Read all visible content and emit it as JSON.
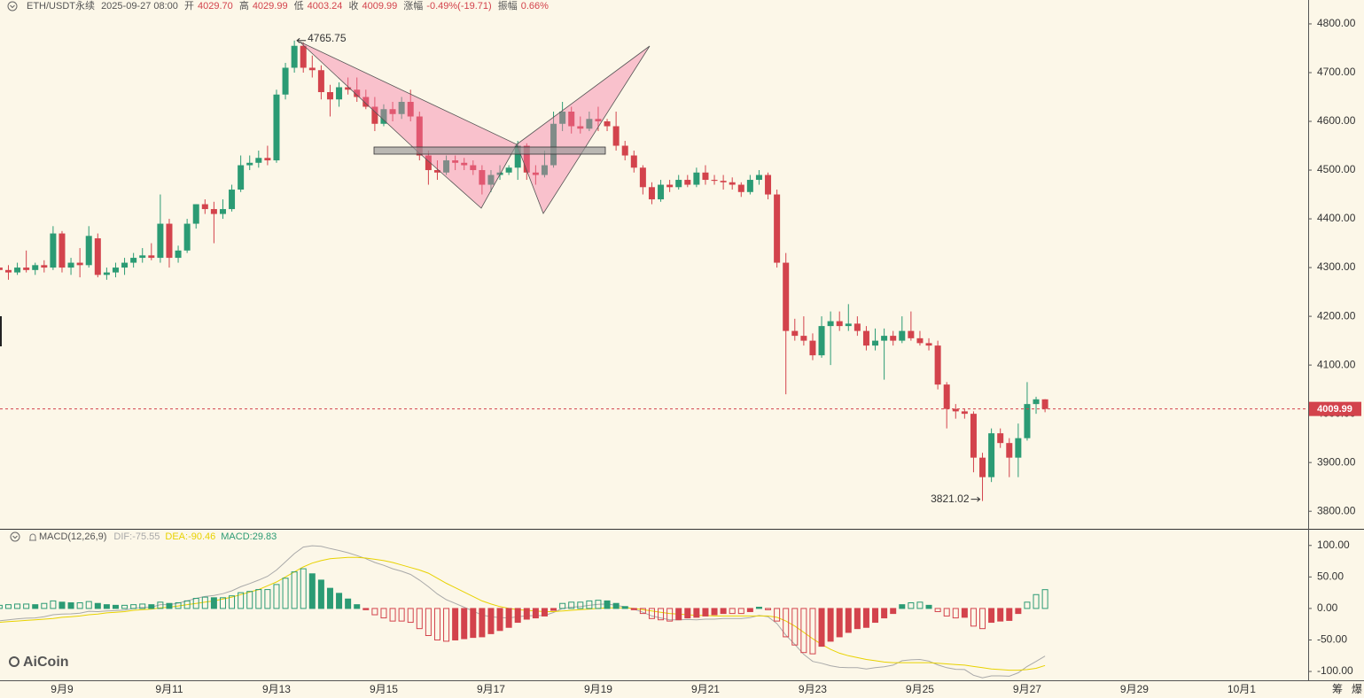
{
  "header": {
    "symbol": "ETH/USDT永续",
    "time": "2025-09-27 08:00",
    "open_label": "开",
    "open": "4029.70",
    "high_label": "高",
    "high": "4029.99",
    "low_label": "低",
    "low": "4003.24",
    "close_label": "收",
    "close": "4009.99",
    "change_label": "涨幅",
    "change": "-0.49%(-19.71)",
    "amplitude_label": "振幅",
    "amplitude": "0.66%"
  },
  "watermark": "AiCoin",
  "side_tabs": [
    "筹",
    "爆"
  ],
  "chart_data": [
    {
      "type": "candlestick",
      "categories": [
        null,
        null,
        null,
        null,
        null,
        null,
        null,
        "9月9",
        null,
        null,
        null,
        null,
        null,
        null,
        null,
        null,
        null,
        null,
        null,
        "9月11",
        null,
        null,
        null,
        null,
        null,
        null,
        null,
        null,
        null,
        null,
        null,
        "9月13",
        null,
        null,
        null,
        null,
        null,
        null,
        null,
        null,
        null,
        null,
        null,
        "9月15",
        null,
        null,
        null,
        null,
        null,
        null,
        null,
        null,
        null,
        null,
        null,
        "9月17",
        null,
        null,
        null,
        null,
        null,
        null,
        null,
        null,
        null,
        null,
        null,
        "9月19",
        null,
        null,
        null,
        null,
        null,
        null,
        null,
        null,
        null,
        null,
        null,
        "9月21",
        null,
        null,
        null,
        null,
        null,
        null,
        null,
        null,
        null,
        null,
        null,
        "9月23",
        null,
        null,
        null,
        null,
        null,
        null,
        null,
        null,
        null,
        null,
        null,
        "9月25",
        null,
        null,
        null,
        null,
        null,
        null,
        null,
        null,
        null,
        null,
        null,
        "9月27",
        null,
        null,
        null,
        null,
        null,
        null,
        null,
        null,
        null,
        null,
        null,
        "9月29",
        null,
        null,
        null,
        null,
        null,
        null,
        null,
        null,
        null,
        null,
        null,
        "10月1"
      ],
      "open": [
        4300,
        4295,
        4290,
        4300,
        4295,
        4305,
        4300,
        4370,
        4300,
        4310,
        4305,
        4360,
        4285,
        4290,
        4300,
        4310,
        4320,
        4325,
        4320,
        4390,
        4320,
        4335,
        4390,
        4430,
        4420,
        4410,
        4420,
        4460,
        4510,
        4515,
        4525,
        4520,
        4655,
        4710,
        4755,
        4710,
        4705,
        4660,
        4645,
        4670,
        4665,
        4650,
        4630,
        4595,
        4625,
        4615,
        4640,
        4610,
        4530,
        4500,
        4495,
        4520,
        4515,
        4510,
        4500,
        4470,
        4490,
        4495,
        4505,
        4550,
        4495,
        4490,
        4510,
        4595,
        4620,
        4590,
        4585,
        4605,
        4600,
        4590,
        4550,
        4530,
        4505,
        4465,
        4440,
        4470,
        4465,
        4480,
        4470,
        4495,
        4480,
        4478,
        4475,
        4470,
        4455,
        4480,
        4490,
        4450,
        4310,
        4170,
        4160,
        4150,
        4120,
        4180,
        4190,
        4180,
        4185,
        4170,
        4140,
        4150,
        4160,
        4150,
        4170,
        4155,
        4145,
        4140,
        4060,
        4010,
        4005,
        4000,
        3910,
        3870,
        3960,
        3940,
        3910,
        3950,
        4020,
        4029.7,
        null,
        null,
        null,
        null,
        null,
        null,
        null,
        null,
        null,
        null,
        null,
        null,
        null,
        null,
        null,
        null,
        null,
        null,
        null,
        null,
        null,
        null
      ],
      "high": [
        4310,
        4305,
        4310,
        4335,
        4310,
        4315,
        4385,
        4375,
        4320,
        4340,
        4385,
        4370,
        4300,
        4310,
        4320,
        4330,
        4340,
        4350,
        4450,
        4400,
        4345,
        4400,
        4430,
        4440,
        4435,
        4440,
        4470,
        4530,
        4530,
        4540,
        4550,
        4665,
        4720,
        4765.75,
        4762,
        4735,
        4715,
        4675,
        4680,
        4690,
        4690,
        4665,
        4650,
        4635,
        4640,
        4650,
        4665,
        4620,
        4540,
        4520,
        4530,
        4530,
        4525,
        4520,
        4510,
        4500,
        4510,
        4510,
        4560,
        4555,
        4510,
        4540,
        4620,
        4640,
        4630,
        4610,
        4620,
        4630,
        4605,
        4620,
        4560,
        4540,
        4510,
        4475,
        4480,
        4480,
        4490,
        4490,
        4505,
        4510,
        4490,
        4490,
        4485,
        4475,
        4490,
        4500,
        4495,
        4460,
        4330,
        4195,
        4200,
        4165,
        4200,
        4210,
        4210,
        4225,
        4200,
        4180,
        4175,
        4175,
        4170,
        4200,
        4210,
        4170,
        4155,
        4150,
        4065,
        4020,
        4010,
        4005,
        3920,
        3970,
        3970,
        3950,
        3980,
        4065,
        4035,
        4029.99,
        null,
        null,
        null,
        null,
        null,
        null,
        null,
        null,
        null,
        null,
        null,
        null,
        null,
        null,
        null,
        null,
        null,
        null,
        null,
        null,
        null,
        null
      ],
      "low": [
        4280,
        4275,
        4285,
        4290,
        4285,
        4290,
        4295,
        4290,
        4285,
        4280,
        4300,
        4280,
        4275,
        4280,
        4285,
        4300,
        4310,
        4315,
        4310,
        4300,
        4310,
        4330,
        4380,
        4410,
        4350,
        4400,
        4415,
        4455,
        4500,
        4505,
        4510,
        4515,
        4645,
        4700,
        4700,
        4690,
        4645,
        4610,
        4630,
        4655,
        4640,
        4625,
        4580,
        4590,
        4600,
        4605,
        4600,
        4520,
        4470,
        4480,
        4490,
        4500,
        4500,
        4490,
        4450,
        4455,
        4480,
        4490,
        4480,
        4480,
        4470,
        4485,
        4505,
        4580,
        4575,
        4575,
        4580,
        4580,
        4580,
        4540,
        4520,
        4495,
        4450,
        4430,
        4435,
        4455,
        4460,
        4465,
        4465,
        4470,
        4470,
        4460,
        4460,
        4445,
        4450,
        4470,
        4440,
        4300,
        4040,
        4150,
        4140,
        4110,
        4115,
        4100,
        4170,
        4170,
        4160,
        4130,
        4130,
        4070,
        4140,
        4145,
        4150,
        4140,
        4130,
        4050,
        3970,
        3990,
        3990,
        3880,
        3821.02,
        3860,
        3930,
        3870,
        3870,
        3945,
        4000,
        4003.24,
        null,
        null,
        null,
        null,
        null,
        null,
        null,
        null,
        null,
        null,
        null,
        null,
        null,
        null,
        null,
        null,
        null,
        null,
        null,
        null,
        null,
        null
      ],
      "close": [
        4295,
        4290,
        4300,
        4295,
        4305,
        4300,
        4370,
        4300,
        4310,
        4305,
        4365,
        4285,
        4290,
        4300,
        4310,
        4320,
        4325,
        4320,
        4390,
        4320,
        4335,
        4390,
        4430,
        4420,
        4410,
        4420,
        4460,
        4510,
        4515,
        4525,
        4520,
        4655,
        4710,
        4755,
        4710,
        4705,
        4660,
        4645,
        4670,
        4665,
        4650,
        4630,
        4595,
        4625,
        4615,
        4640,
        4610,
        4530,
        4500,
        4495,
        4520,
        4515,
        4510,
        4500,
        4470,
        4490,
        4495,
        4505,
        4550,
        4495,
        4490,
        4510,
        4595,
        4620,
        4590,
        4585,
        4605,
        4600,
        4590,
        4550,
        4530,
        4505,
        4465,
        4440,
        4470,
        4465,
        4480,
        4470,
        4495,
        4480,
        4478,
        4475,
        4470,
        4455,
        4480,
        4490,
        4450,
        4310,
        4170,
        4160,
        4150,
        4120,
        4180,
        4190,
        4180,
        4185,
        4170,
        4140,
        4150,
        4160,
        4150,
        4170,
        4155,
        4145,
        4140,
        4060,
        4010,
        4005,
        4000,
        3910,
        3870,
        3960,
        3940,
        3910,
        3950,
        4020,
        4029.7,
        4009.99,
        null,
        null,
        null,
        null,
        null,
        null,
        null,
        null,
        null,
        null,
        null,
        null,
        null,
        null,
        null,
        null,
        null,
        null,
        null,
        null,
        null,
        null
      ],
      "up_color": "#2b9b74",
      "down_color": "#d3434c",
      "ylim": [
        3764,
        4849
      ],
      "yticks": [
        {
          "value": 3800,
          "label": "3800.00"
        },
        {
          "value": 3900,
          "label": "3900.00"
        },
        {
          "value": 4000,
          "label": "4000.00"
        },
        {
          "value": 4100,
          "label": "4100.00"
        },
        {
          "value": 4200,
          "label": "4200.00"
        },
        {
          "value": 4300,
          "label": "4300.00"
        },
        {
          "value": 4400,
          "label": "4400.00"
        },
        {
          "value": 4500,
          "label": "4500.00"
        },
        {
          "value": 4600,
          "label": "4600.00"
        },
        {
          "value": 4700,
          "label": "4700.00"
        },
        {
          "value": 4800,
          "label": "4800.00"
        }
      ],
      "price_line": true,
      "extremes": true
    },
    {
      "type": "bar",
      "title": "MACD(12,26,9)",
      "series": [
        {
          "name": "DIF:-75.55",
          "type": "line",
          "color": "#a9a9a9",
          "values": [
            -19.5,
            -18,
            -16.5,
            -15.5,
            -15,
            -13,
            -10,
            -9,
            -8.5,
            -7.5,
            -4.5,
            -5,
            -4,
            -3.5,
            -2.5,
            0,
            1.5,
            2,
            6,
            6,
            8.5,
            12,
            16,
            19,
            20.5,
            23.5,
            28,
            34.5,
            39.5,
            45,
            51,
            61,
            74,
            87,
            97.5,
            99.5,
            98.5,
            95,
            92,
            88.5,
            84,
            79,
            73,
            68.5,
            63,
            59,
            54,
            45,
            34.5,
            23,
            14,
            8,
            2,
            -4,
            -10.5,
            -13,
            -14.5,
            -15,
            -13,
            -11.5,
            -11.5,
            -11,
            -6.5,
            0,
            2,
            3,
            5,
            6.5,
            7,
            5,
            2.5,
            -1,
            -6,
            -12,
            -15,
            -18,
            -18,
            -17.5,
            -18,
            -17,
            -17,
            -16,
            -16,
            -16,
            -14.5,
            -11,
            -13,
            -24,
            -42.5,
            -57,
            -73,
            -84,
            -87,
            -91,
            -93.5,
            -94,
            -94,
            -96,
            -94,
            -92.5,
            -90,
            -83,
            -81.5,
            -81,
            -83.5,
            -89.5,
            -94,
            -96.5,
            -97,
            -106,
            -110,
            -107,
            -107,
            -107.5,
            -102,
            -92,
            -84,
            -75.55
          ]
        },
        {
          "name": "DEA:-90.46",
          "type": "line",
          "color": "#e8d200",
          "values": [
            -22,
            -21,
            -20,
            -19,
            -18,
            -17,
            -16,
            -14,
            -13,
            -12,
            -10,
            -9,
            -7,
            -6,
            -5,
            -3,
            -2,
            -1,
            1,
            2,
            4,
            6,
            8,
            10,
            12,
            15,
            18,
            22,
            26,
            30,
            36,
            42,
            50,
            58,
            66,
            72,
            76,
            79,
            80,
            81,
            81,
            80,
            78,
            76,
            73,
            69,
            65,
            61,
            56,
            48,
            40,
            33,
            26,
            19,
            12,
            7,
            3,
            0,
            -2,
            -3,
            -4,
            -5,
            -5,
            -4,
            -3,
            -2,
            -1,
            0,
            1,
            1,
            1,
            0,
            -2,
            -4,
            -6,
            -8,
            -9,
            -10,
            -11,
            -11,
            -12,
            -12,
            -12,
            -12,
            -12,
            -12,
            -12,
            -14,
            -20,
            -28,
            -38,
            -48,
            -57,
            -65,
            -71,
            -75,
            -78,
            -81,
            -83,
            -85,
            -86,
            -86,
            -86,
            -86,
            -86,
            -87,
            -88,
            -89,
            -90,
            -92,
            -94,
            -96,
            -97,
            -98,
            -98,
            -97,
            -95,
            -90.46
          ]
        },
        {
          "name": "MACD:29.83",
          "type": "bar",
          "color": "#2b9b74",
          "negative_color": "#d3434c",
          "values": [
            5,
            6,
            7,
            7,
            6,
            8,
            12,
            10,
            9,
            9,
            11,
            8,
            6,
            5,
            5,
            6,
            7,
            6,
            10,
            8,
            9,
            12,
            16,
            18,
            17,
            17,
            20,
            25,
            27,
            30,
            30,
            38,
            48,
            58,
            63,
            55,
            45,
            32,
            24,
            15,
            6,
            -2,
            -10,
            -15,
            -20,
            -20,
            -22,
            -32,
            -43,
            -50,
            -52,
            -50,
            -48,
            -46,
            -45,
            -40,
            -35,
            -30,
            -22,
            -17,
            -15,
            -12,
            -3,
            8,
            10,
            10,
            12,
            13,
            12,
            8,
            3,
            -2,
            -8,
            -16,
            -18,
            -20,
            -18,
            -15,
            -14,
            -12,
            -10,
            -8,
            -8,
            -8,
            -5,
            2,
            -2,
            -20,
            -45,
            -58,
            -70,
            -72,
            -60,
            -52,
            -45,
            -38,
            -32,
            -30,
            -22,
            -15,
            -8,
            6,
            9,
            10,
            5,
            -5,
            -12,
            -15,
            -14,
            -28,
            -32,
            -22,
            -20,
            -19,
            -8,
            10,
            22,
            29.83
          ]
        }
      ],
      "ylim": [
        -114,
        125
      ],
      "yticks": [
        {
          "value": -100,
          "label": "-100.00"
        },
        {
          "value": -50,
          "label": "-50.00"
        },
        {
          "value": 0,
          "label": "0.00"
        },
        {
          "value": 50,
          "label": "50.00"
        },
        {
          "value": 100,
          "label": "100.00"
        }
      ]
    }
  ]
}
